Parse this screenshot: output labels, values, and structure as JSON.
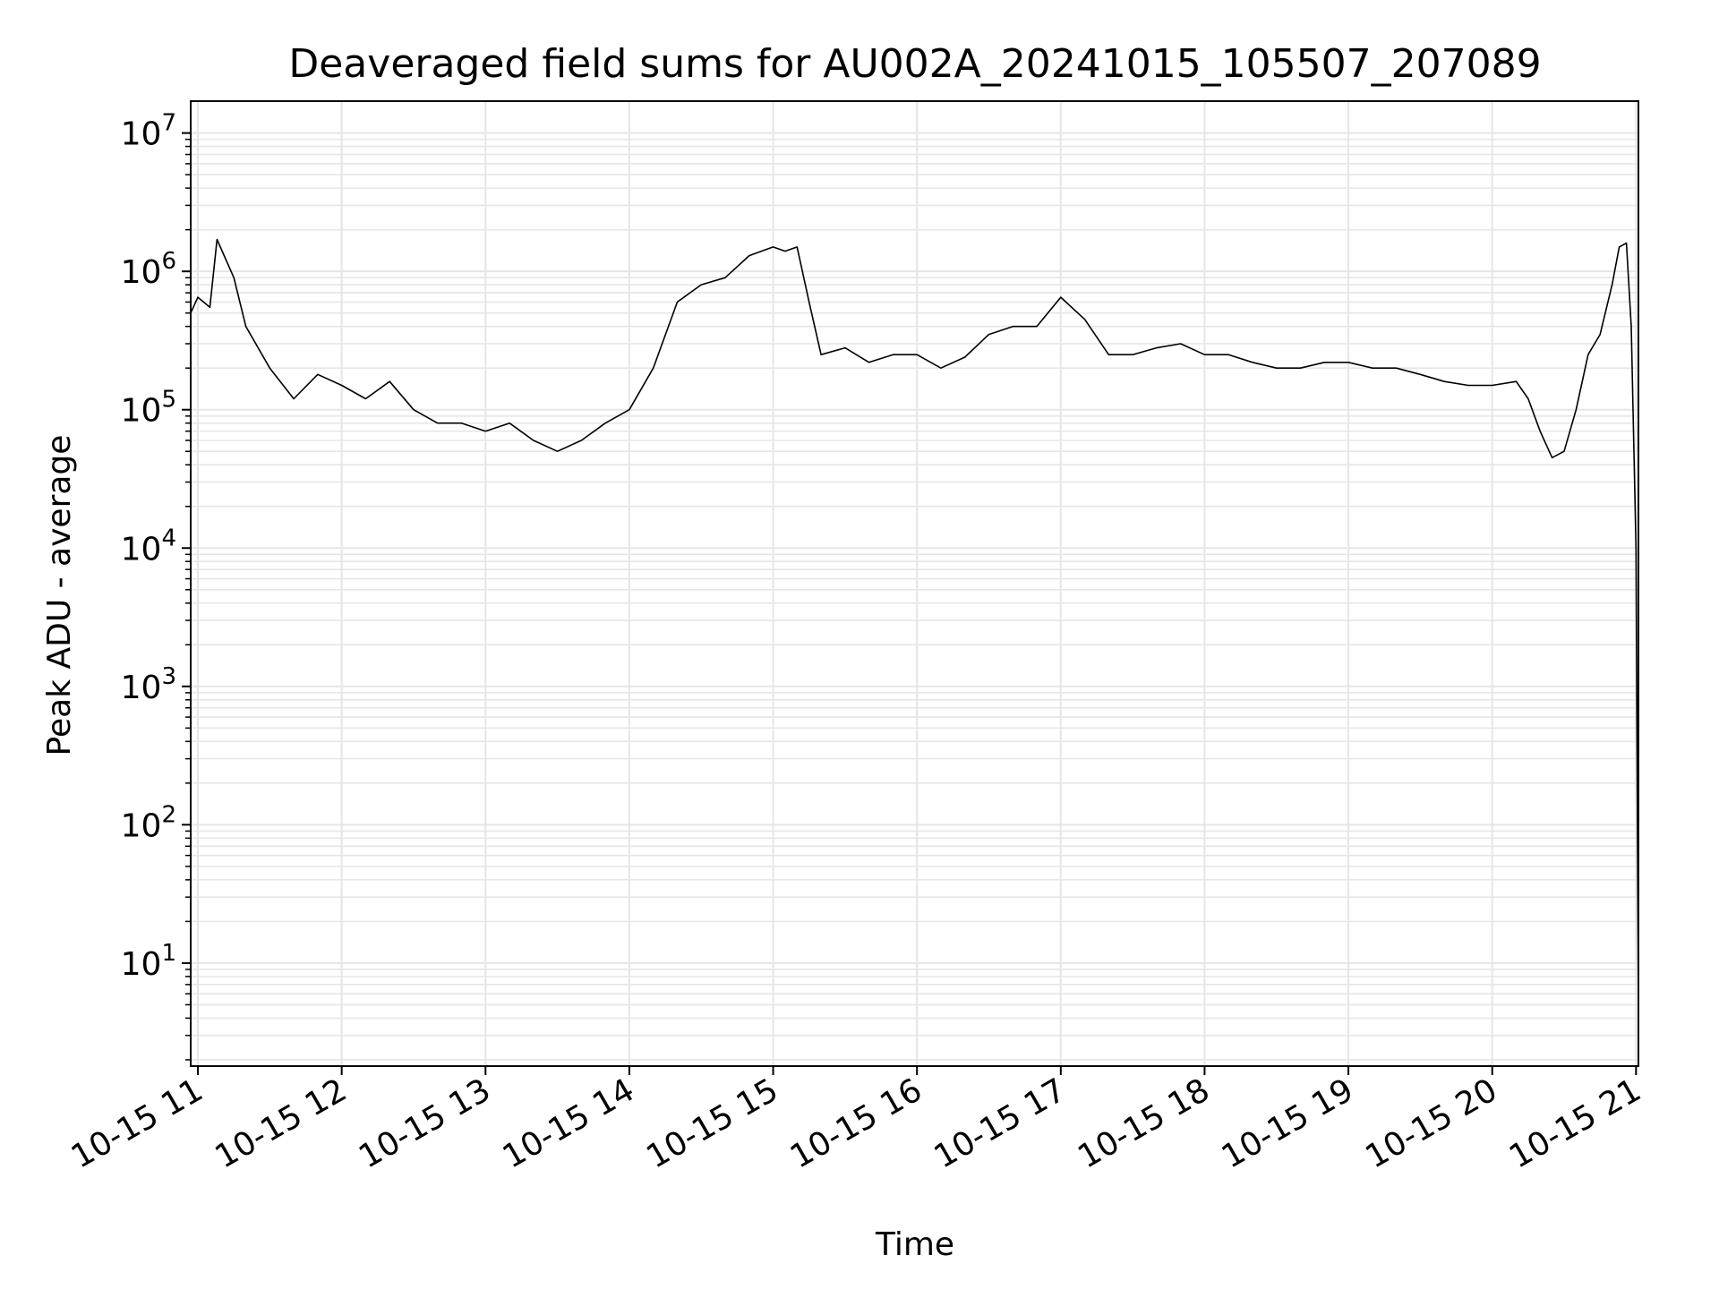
{
  "chart_data": {
    "type": "line",
    "title": "Deaveraged field sums for AU002A_20241015_105507_207089",
    "xlabel": "Time",
    "ylabel": "Peak ADU - average",
    "yscale": "log",
    "ylim": [
      1.8,
      17000000.0
    ],
    "xlim": [
      "2024-10-15T10:57",
      "2024-10-15T21:01"
    ],
    "grid": true,
    "grid_color": "#e6e6e6",
    "line_color": "#000000",
    "x_ticks": [
      {
        "label": "10-15 11",
        "time": "2024-10-15T11:00"
      },
      {
        "label": "10-15 12",
        "time": "2024-10-15T12:00"
      },
      {
        "label": "10-15 13",
        "time": "2024-10-15T13:00"
      },
      {
        "label": "10-15 14",
        "time": "2024-10-15T14:00"
      },
      {
        "label": "10-15 15",
        "time": "2024-10-15T15:00"
      },
      {
        "label": "10-15 16",
        "time": "2024-10-15T16:00"
      },
      {
        "label": "10-15 17",
        "time": "2024-10-15T17:00"
      },
      {
        "label": "10-15 18",
        "time": "2024-10-15T18:00"
      },
      {
        "label": "10-15 19",
        "time": "2024-10-15T19:00"
      },
      {
        "label": "10-15 20",
        "time": "2024-10-15T20:00"
      },
      {
        "label": "10-15 21",
        "time": "2024-10-15T21:00"
      }
    ],
    "y_ticks": [
      {
        "base": "10",
        "exp": "1",
        "value": 10
      },
      {
        "base": "10",
        "exp": "2",
        "value": 100
      },
      {
        "base": "10",
        "exp": "3",
        "value": 1000
      },
      {
        "base": "10",
        "exp": "4",
        "value": 10000
      },
      {
        "base": "10",
        "exp": "5",
        "value": 100000
      },
      {
        "base": "10",
        "exp": "6",
        "value": 1000000
      },
      {
        "base": "10",
        "exp": "7",
        "value": 10000000
      }
    ],
    "series": [
      {
        "points": [
          [
            "2024-10-15T10:57",
            500000.0
          ],
          [
            "2024-10-15T11:00",
            650000.0
          ],
          [
            "2024-10-15T11:05",
            550000.0
          ],
          [
            "2024-10-15T11:08",
            1700000.0
          ],
          [
            "2024-10-15T11:15",
            900000.0
          ],
          [
            "2024-10-15T11:20",
            400000.0
          ],
          [
            "2024-10-15T11:30",
            200000.0
          ],
          [
            "2024-10-15T11:40",
            120000.0
          ],
          [
            "2024-10-15T11:50",
            180000.0
          ],
          [
            "2024-10-15T12:00",
            150000.0
          ],
          [
            "2024-10-15T12:10",
            120000.0
          ],
          [
            "2024-10-15T12:20",
            160000.0
          ],
          [
            "2024-10-15T12:30",
            100000.0
          ],
          [
            "2024-10-15T12:40",
            80000.0
          ],
          [
            "2024-10-15T12:50",
            80000.0
          ],
          [
            "2024-10-15T13:00",
            70000.0
          ],
          [
            "2024-10-15T13:10",
            80000.0
          ],
          [
            "2024-10-15T13:20",
            60000.0
          ],
          [
            "2024-10-15T13:30",
            50000.0
          ],
          [
            "2024-10-15T13:40",
            60000.0
          ],
          [
            "2024-10-15T13:50",
            80000.0
          ],
          [
            "2024-10-15T14:00",
            100000.0
          ],
          [
            "2024-10-15T14:10",
            200000.0
          ],
          [
            "2024-10-15T14:20",
            600000.0
          ],
          [
            "2024-10-15T14:30",
            800000.0
          ],
          [
            "2024-10-15T14:40",
            900000.0
          ],
          [
            "2024-10-15T14:50",
            1300000.0
          ],
          [
            "2024-10-15T15:00",
            1500000.0
          ],
          [
            "2024-10-15T15:05",
            1400000.0
          ],
          [
            "2024-10-15T15:10",
            1500000.0
          ],
          [
            "2024-10-15T15:15",
            600000.0
          ],
          [
            "2024-10-15T15:20",
            250000.0
          ],
          [
            "2024-10-15T15:30",
            280000.0
          ],
          [
            "2024-10-15T15:40",
            220000.0
          ],
          [
            "2024-10-15T15:50",
            250000.0
          ],
          [
            "2024-10-15T16:00",
            250000.0
          ],
          [
            "2024-10-15T16:10",
            200000.0
          ],
          [
            "2024-10-15T16:20",
            240000.0
          ],
          [
            "2024-10-15T16:30",
            350000.0
          ],
          [
            "2024-10-15T16:40",
            400000.0
          ],
          [
            "2024-10-15T16:50",
            400000.0
          ],
          [
            "2024-10-15T17:00",
            650000.0
          ],
          [
            "2024-10-15T17:10",
            450000.0
          ],
          [
            "2024-10-15T17:20",
            250000.0
          ],
          [
            "2024-10-15T17:30",
            250000.0
          ],
          [
            "2024-10-15T17:40",
            280000.0
          ],
          [
            "2024-10-15T17:50",
            300000.0
          ],
          [
            "2024-10-15T18:00",
            250000.0
          ],
          [
            "2024-10-15T18:10",
            250000.0
          ],
          [
            "2024-10-15T18:20",
            220000.0
          ],
          [
            "2024-10-15T18:30",
            200000.0
          ],
          [
            "2024-10-15T18:40",
            200000.0
          ],
          [
            "2024-10-15T18:50",
            220000.0
          ],
          [
            "2024-10-15T19:00",
            220000.0
          ],
          [
            "2024-10-15T19:10",
            200000.0
          ],
          [
            "2024-10-15T19:20",
            200000.0
          ],
          [
            "2024-10-15T19:30",
            180000.0
          ],
          [
            "2024-10-15T19:40",
            160000.0
          ],
          [
            "2024-10-15T19:50",
            150000.0
          ],
          [
            "2024-10-15T20:00",
            150000.0
          ],
          [
            "2024-10-15T20:10",
            160000.0
          ],
          [
            "2024-10-15T20:15",
            120000.0
          ],
          [
            "2024-10-15T20:20",
            70000.0
          ],
          [
            "2024-10-15T20:25",
            45000.0
          ],
          [
            "2024-10-15T20:30",
            50000.0
          ],
          [
            "2024-10-15T20:35",
            100000.0
          ],
          [
            "2024-10-15T20:40",
            250000.0
          ],
          [
            "2024-10-15T20:45",
            350000.0
          ],
          [
            "2024-10-15T20:50",
            800000.0
          ],
          [
            "2024-10-15T20:53",
            1500000.0
          ],
          [
            "2024-10-15T20:56",
            1600000.0
          ],
          [
            "2024-10-15T20:58",
            400000.0
          ],
          [
            "2024-10-15T21:00",
            10000.0
          ],
          [
            "2024-10-15T21:01",
            4.0
          ]
        ]
      }
    ]
  }
}
